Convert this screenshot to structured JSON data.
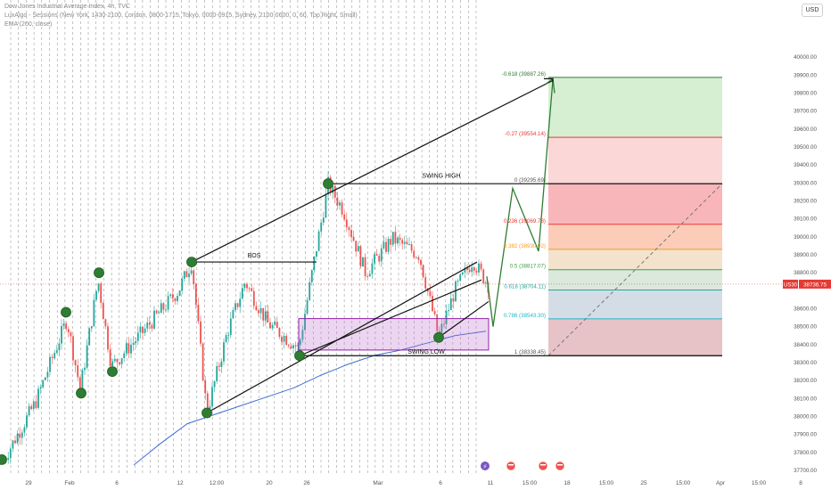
{
  "header": {
    "title": "Dow Jones Industrial Average Index, 4h, TVC",
    "sessions": "LuxAlgo - Sessions (New York, 1430-2100, London, 0800-1715, Tokyo, 0000-0915, Sydney, 2100-0600, 0, 60, Top Right, Small)",
    "ema": "EMA (200, close)"
  },
  "currency_button": "USD",
  "chart_data": {
    "type": "line",
    "title": "Dow Jones Industrial Average Index, 4h, TVC",
    "y_axis": {
      "range": [
        37700,
        40100
      ],
      "ticks": [
        40000,
        39900,
        39800,
        39700,
        39600,
        39500,
        39400,
        39300,
        39200,
        39100,
        39000,
        38900,
        38800,
        38700,
        38600,
        38500,
        38400,
        38300,
        38200,
        38100,
        38000,
        37900,
        37800,
        37700
      ],
      "labels": [
        "40000.00",
        "39900.00",
        "39800.00",
        "39700.00",
        "39600.00",
        "39500.00",
        "39400.00",
        "39300.00",
        "39200.00",
        "39100.00",
        "39000.00",
        "38900.00",
        "38800.00",
        "38700.00",
        "38600.00",
        "38500.00",
        "38400.00",
        "38300.00",
        "38200.00",
        "38100.00",
        "38000.00",
        "37900.00",
        "37800.00",
        "37700.00"
      ]
    },
    "x_axis": {
      "labels": [
        "29",
        "Feb",
        "6",
        "12",
        "12:00",
        "20",
        "26",
        "Mar",
        "6",
        "11",
        "15:00",
        "18",
        "15:00",
        "25",
        "15:00",
        "Apr",
        "15:00",
        "8"
      ]
    },
    "last_price": {
      "symbol": "US30",
      "value": 38736.75,
      "label": "38736.75"
    },
    "fibonacci": [
      {
        "level": "-0.618",
        "price": 39887.26,
        "label": "-0.618 (39887.26)",
        "color": "#2e7d32",
        "fill": "#d6efd3"
      },
      {
        "level": "-0.27",
        "price": 39554.14,
        "label": "-0.27 (39554.14)",
        "color": "#e53935",
        "fill": "#fbd7d7"
      },
      {
        "level": "0",
        "price": 39295.69,
        "label": "0 (39295.69)",
        "color": "#555555",
        "fill": "#f8b6bb"
      },
      {
        "level": "0.236",
        "price": 39069.78,
        "label": "0.236 (39069.78)",
        "color": "#e53935",
        "fill": "#fbcdb8"
      },
      {
        "level": "0.382",
        "price": 38930.02,
        "label": "0.382 (38930.02)",
        "color": "#f59c1f",
        "fill": "#f4e3cc"
      },
      {
        "level": "0.5",
        "price": 38817.07,
        "label": "0.5 (38817.07)",
        "color": "#43a047",
        "fill": "#dbe9dc"
      },
      {
        "level": "0.618",
        "price": 38704.11,
        "label": "0.618 (38704.11)",
        "color": "#26a69a",
        "fill": "#d4dde6"
      },
      {
        "level": "0.786",
        "price": 38543.3,
        "label": "0.786 (38543.30)",
        "color": "#1eb6c9",
        "fill": "#e7c3c8"
      },
      {
        "level": "1",
        "price": 38338.45,
        "label": "1 (38338.45)",
        "color": "#555555",
        "fill": null
      }
    ],
    "annotations": [
      "SWING HIGH",
      "BOS",
      "SWING LOW"
    ],
    "series": [
      {
        "name": "EMA (200, close)",
        "color": "#3f6fd1",
        "points": [
          [
            150,
            37730
          ],
          [
            180,
            37850
          ],
          [
            210,
            37960
          ],
          [
            240,
            38010
          ],
          [
            270,
            38060
          ],
          [
            300,
            38110
          ],
          [
            330,
            38160
          ],
          [
            360,
            38230
          ],
          [
            390,
            38290
          ],
          [
            420,
            38340
          ],
          [
            450,
            38370
          ],
          [
            480,
            38410
          ],
          [
            510,
            38450
          ],
          [
            545,
            38475
          ]
        ]
      }
    ]
  }
}
